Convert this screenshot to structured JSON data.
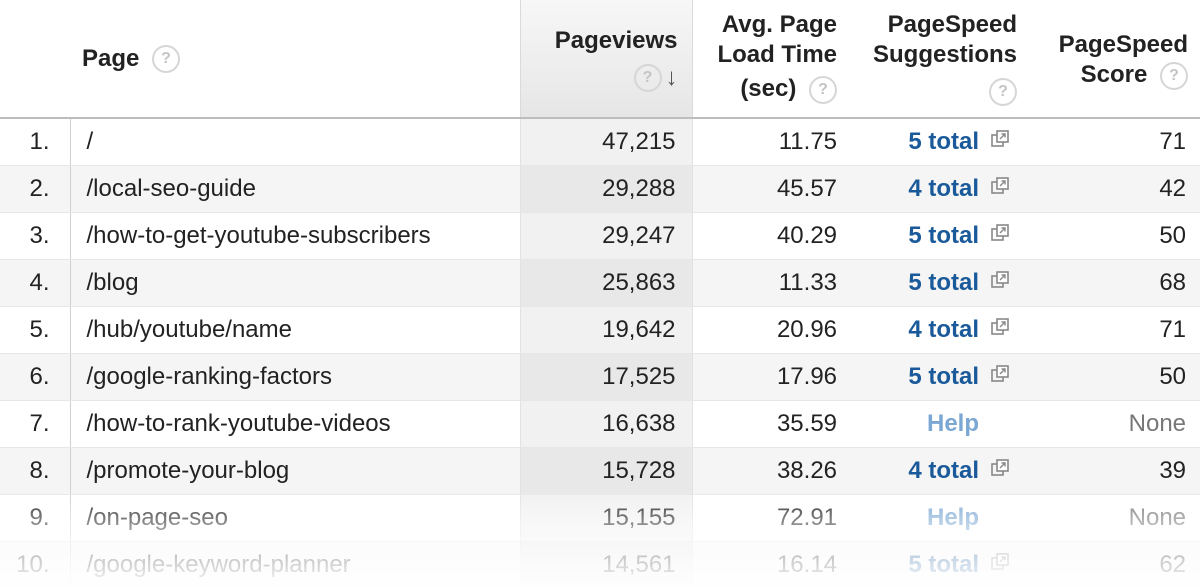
{
  "header": {
    "page": "Page",
    "pageviews": "Pageviews",
    "load_time_line1": "Avg. Page",
    "load_time_line2": "Load Time",
    "load_time_line3": "(sec)",
    "suggestions_line1": "PageSpeed",
    "suggestions_line2": "Suggestions",
    "score_line1": "PageSpeed",
    "score_line2": "Score",
    "help_glyph": "?",
    "sort_glyph": "↓"
  },
  "rows": [
    {
      "num": "1.",
      "page": "/",
      "pageviews": "47,215",
      "load_time": "11.75",
      "suggestions": "5 total",
      "score": "71"
    },
    {
      "num": "2.",
      "page": "/local-seo-guide",
      "pageviews": "29,288",
      "load_time": "45.57",
      "suggestions": "4 total",
      "score": "42"
    },
    {
      "num": "3.",
      "page": "/how-to-get-youtube-subscribers",
      "pageviews": "29,247",
      "load_time": "40.29",
      "suggestions": "5 total",
      "score": "50"
    },
    {
      "num": "4.",
      "page": "/blog",
      "pageviews": "25,863",
      "load_time": "11.33",
      "suggestions": "5 total",
      "score": "68"
    },
    {
      "num": "5.",
      "page": "/hub/youtube/name",
      "pageviews": "19,642",
      "load_time": "20.96",
      "suggestions": "4 total",
      "score": "71"
    },
    {
      "num": "6.",
      "page": "/google-ranking-factors",
      "pageviews": "17,525",
      "load_time": "17.96",
      "suggestions": "5 total",
      "score": "50"
    },
    {
      "num": "7.",
      "page": "/how-to-rank-youtube-videos",
      "pageviews": "16,638",
      "load_time": "35.59",
      "suggestions_help": "Help",
      "score": "None"
    },
    {
      "num": "8.",
      "page": "/promote-your-blog",
      "pageviews": "15,728",
      "load_time": "38.26",
      "suggestions": "4 total",
      "score": "39"
    },
    {
      "num": "9.",
      "page": "/on-page-seo",
      "pageviews": "15,155",
      "load_time": "72.91",
      "suggestions_help": "Help",
      "score": "None"
    },
    {
      "num": "10.",
      "page": "/google-keyword-planner",
      "pageviews": "14,561",
      "load_time": "16.14",
      "suggestions": "5 total",
      "score": "62"
    }
  ],
  "colors": {
    "link": "#1a5a9a",
    "help_link": "#7aa7d3",
    "sorted_column_bg": "#f1f1f1"
  }
}
